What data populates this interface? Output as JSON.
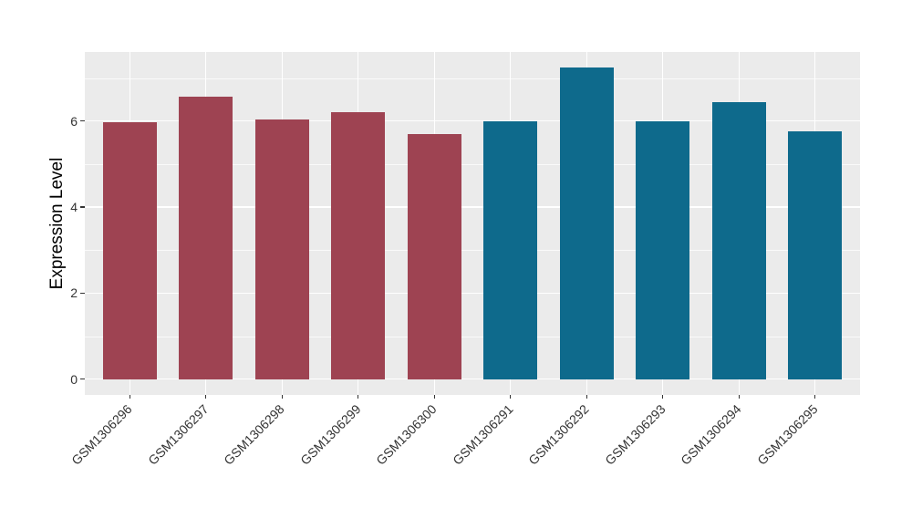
{
  "figure": {
    "background_color": "#FFFFFF",
    "panel_background_color": "#EBEBEB",
    "grid_color": "#FFFFFF",
    "tick_color": "#333333"
  },
  "chart_data": {
    "type": "bar",
    "title": "",
    "xlabel": "",
    "ylabel": "Expression Level",
    "categories": [
      "GSM1306296",
      "GSM1306297",
      "GSM1306298",
      "GSM1306299",
      "GSM1306300",
      "GSM1306291",
      "GSM1306292",
      "GSM1306293",
      "GSM1306294",
      "GSM1306295"
    ],
    "values": [
      5.97,
      6.57,
      6.04,
      6.21,
      5.7,
      6.0,
      7.25,
      6.0,
      6.43,
      5.76
    ],
    "bar_colors": [
      "#9E4352",
      "#9E4352",
      "#9E4352",
      "#9E4352",
      "#9E4352",
      "#0E6A8C",
      "#0E6A8C",
      "#0E6A8C",
      "#0E6A8C",
      "#0E6A8C"
    ],
    "group_colors": {
      "maroon_group": "#9E4352",
      "teal_group": "#0E6A8C"
    },
    "y_ticks": [
      0,
      2,
      4,
      6
    ],
    "y_minor_ticks": [
      1,
      3,
      5,
      7
    ],
    "ylim": [
      -0.37,
      7.61
    ],
    "x_label_angle_deg": -45,
    "grid": true,
    "legend": "none"
  }
}
